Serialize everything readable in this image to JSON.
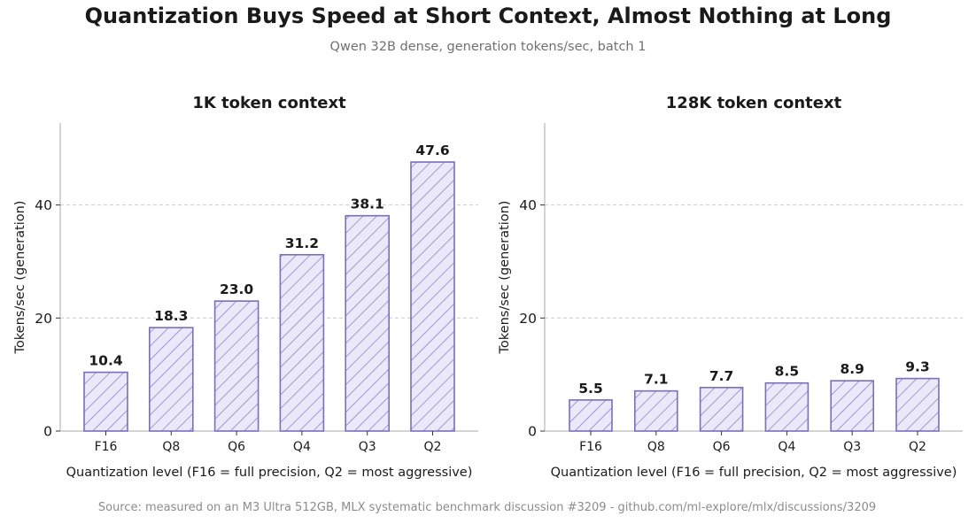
{
  "title": "Quantization Buys Speed at Short Context, Almost Nothing at Long",
  "subtitle": "Qwen 32B dense, generation tokens/sec, batch 1",
  "source": "Source: measured on an M3 Ultra 512GB, MLX systematic benchmark discussion #3209 - github.com/ml-explore/mlx/discussions/3209",
  "colors": {
    "bar_fill": "#ebe8fa",
    "bar_edge": "#7a6fbd",
    "hatch": "#7a6fbd",
    "grid": "#cccccc",
    "axis": "#aaaaaa"
  },
  "chart_data": [
    {
      "type": "bar",
      "title": "1K token context",
      "categories": [
        "F16",
        "Q8",
        "Q6",
        "Q4",
        "Q3",
        "Q2"
      ],
      "values": [
        10.4,
        18.3,
        23.0,
        31.2,
        38.1,
        47.6
      ],
      "value_labels": [
        "10.4",
        "18.3",
        "23.0",
        "31.2",
        "38.1",
        "47.6"
      ],
      "xlabel": "Quantization level (F16 = full precision, Q2 = most aggressive)",
      "ylabel": "Tokens/sec (generation)",
      "ylim": [
        0,
        54.5
      ],
      "yticks": [
        0,
        20,
        40
      ],
      "ytick_labels": [
        "0",
        "20",
        "40"
      ],
      "grid": "horizontal dashed"
    },
    {
      "type": "bar",
      "title": "128K token context",
      "categories": [
        "F16",
        "Q8",
        "Q6",
        "Q4",
        "Q3",
        "Q2"
      ],
      "values": [
        5.5,
        7.1,
        7.7,
        8.5,
        8.9,
        9.3
      ],
      "value_labels": [
        "5.5",
        "7.1",
        "7.7",
        "8.5",
        "8.9",
        "9.3"
      ],
      "xlabel": "Quantization level (F16 = full precision, Q2 = most aggressive)",
      "ylabel": "Tokens/sec (generation)",
      "ylim": [
        0,
        54.5
      ],
      "yticks": [
        0,
        20,
        40
      ],
      "ytick_labels": [
        "0",
        "20",
        "40"
      ],
      "grid": "horizontal dashed"
    }
  ]
}
